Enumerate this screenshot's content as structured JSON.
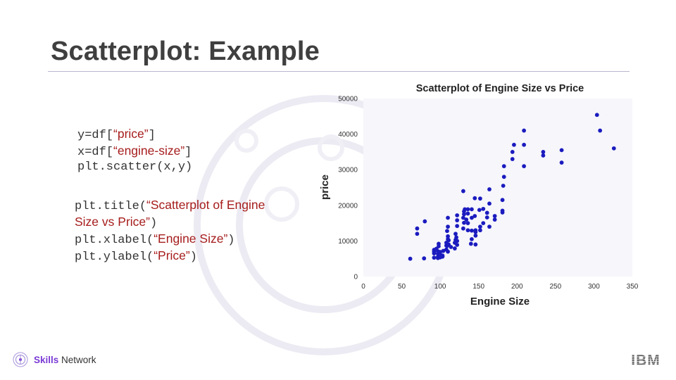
{
  "slide": {
    "title": "Scatterplot: Example"
  },
  "code": {
    "block1": [
      {
        "pre": "y=df[",
        "str": "“price”",
        "post": "]"
      },
      {
        "pre": "x=df[",
        "str": "“engine-size”",
        "post": "]"
      },
      {
        "pre": "plt.scatter(x,y)",
        "str": "",
        "post": ""
      }
    ],
    "block2": [
      {
        "pre": "plt.title(",
        "str": "“Scatterplot of Engine",
        "post": ""
      },
      {
        "pre": "",
        "str": "Size vs Price”",
        "post": ")"
      },
      {
        "pre": "plt.xlabel(",
        "str": "“Engine Size”",
        "post": ")"
      },
      {
        "pre": "plt.ylabel(",
        "str": "“Price”",
        "post": ")"
      }
    ]
  },
  "footer": {
    "brand_bold": "Skills",
    "brand_rest": " Network",
    "company": "IBM"
  },
  "colors": {
    "point": "#1b1bbf",
    "string": "#a61c1c",
    "plot_bg": "#f6f6fb",
    "brand": "#7a3bd6"
  },
  "chart_data": {
    "type": "scatter",
    "title": "Scatterplot of Engine Size vs Price",
    "xlabel": "Engine Size",
    "ylabel": "price",
    "xlim": [
      0,
      350
    ],
    "ylim": [
      0,
      50000
    ],
    "xticks": [
      0,
      50,
      100,
      150,
      200,
      250,
      300,
      350
    ],
    "yticks": [
      0,
      10000,
      20000,
      30000,
      40000,
      50000
    ],
    "grid": false,
    "legend": "none",
    "points": [
      [
        61,
        5000
      ],
      [
        79,
        5100
      ],
      [
        80,
        15500
      ],
      [
        70,
        12000
      ],
      [
        70,
        13500
      ],
      [
        92,
        5300
      ],
      [
        92,
        6500
      ],
      [
        92,
        7000
      ],
      [
        92,
        7500
      ],
      [
        95,
        7800
      ],
      [
        97,
        5500
      ],
      [
        97,
        6400
      ],
      [
        97,
        7100
      ],
      [
        98,
        8500
      ],
      [
        98,
        9200
      ],
      [
        100,
        5400
      ],
      [
        100,
        6200
      ],
      [
        100,
        6900
      ],
      [
        103,
        5600
      ],
      [
        104,
        7200
      ],
      [
        108,
        7600
      ],
      [
        108,
        8700
      ],
      [
        108,
        9500
      ],
      [
        110,
        7000
      ],
      [
        110,
        10500
      ],
      [
        110,
        11300
      ],
      [
        109,
        12800
      ],
      [
        110,
        14000
      ],
      [
        110,
        16500
      ],
      [
        111,
        10200
      ],
      [
        111,
        9000
      ],
      [
        114,
        8300
      ],
      [
        119,
        7900
      ],
      [
        120,
        10300
      ],
      [
        120,
        12000
      ],
      [
        121,
        11000
      ],
      [
        122,
        10000
      ],
      [
        122,
        8900
      ],
      [
        122,
        14200
      ],
      [
        122,
        15800
      ],
      [
        122,
        17200
      ],
      [
        130,
        13500
      ],
      [
        130,
        16500
      ],
      [
        131,
        15100
      ],
      [
        131,
        17500
      ],
      [
        131,
        18300
      ],
      [
        132,
        18900
      ],
      [
        134,
        16000
      ],
      [
        136,
        13000
      ],
      [
        136,
        15000
      ],
      [
        136,
        17700
      ],
      [
        136,
        18900
      ],
      [
        140,
        9200
      ],
      [
        141,
        10500
      ],
      [
        141,
        12900
      ],
      [
        141,
        16500
      ],
      [
        141,
        18900
      ],
      [
        145,
        17000
      ],
      [
        145,
        22000
      ],
      [
        146,
        9000
      ],
      [
        146,
        11500
      ],
      [
        146,
        12500
      ],
      [
        146,
        13000
      ],
      [
        151,
        18700
      ],
      [
        152,
        13000
      ],
      [
        152,
        14000
      ],
      [
        152,
        21900
      ],
      [
        156,
        15000
      ],
      [
        156,
        19000
      ],
      [
        161,
        16600
      ],
      [
        161,
        17900
      ],
      [
        164,
        20500
      ],
      [
        164,
        24500
      ],
      [
        164,
        14000
      ],
      [
        171,
        17000
      ],
      [
        171,
        16000
      ],
      [
        181,
        18000
      ],
      [
        181,
        18500
      ],
      [
        181,
        21500
      ],
      [
        182,
        25500
      ],
      [
        183,
        31000
      ],
      [
        183,
        28000
      ],
      [
        130,
        24000
      ],
      [
        194,
        33000
      ],
      [
        194,
        35000
      ],
      [
        196,
        37000
      ],
      [
        209,
        41000
      ],
      [
        209,
        37000
      ],
      [
        209,
        31000
      ],
      [
        234,
        34000
      ],
      [
        234,
        35000
      ],
      [
        258,
        32000
      ],
      [
        258,
        35500
      ],
      [
        304,
        45400
      ],
      [
        308,
        41000
      ],
      [
        326,
        36000
      ],
      [
        97,
        5200
      ],
      [
        103,
        5900
      ],
      [
        109,
        8600
      ],
      [
        119,
        9500
      ]
    ]
  }
}
